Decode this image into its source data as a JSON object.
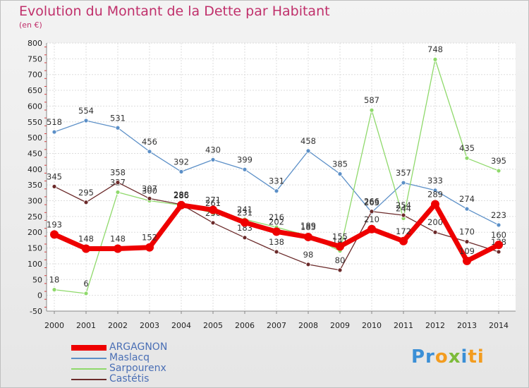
{
  "header": {
    "title": "Evolution du Montant de la Dette par Habitant",
    "subtitle": "(en €)"
  },
  "colors": {
    "title": "#c0306b",
    "argagnon": "#ee0000",
    "maslacq": "#5b8fc7",
    "sarpourenx": "#8fd96b",
    "castetis": "#6b2a2a"
  },
  "logo": {
    "parts": [
      "Pr",
      "o",
      "x",
      "i",
      "ti"
    ]
  },
  "chart_data": {
    "type": "line",
    "title": "Evolution du Montant de la Dette par Habitant",
    "subtitle": "(en €)",
    "x": [
      "2000",
      "2001",
      "2002",
      "2003",
      "2004",
      "2005",
      "2006",
      "2007",
      "2008",
      "2009",
      "2010",
      "2011",
      "2012",
      "2013",
      "2014"
    ],
    "ylim": [
      -50,
      800
    ],
    "yticks": [
      -50,
      0,
      50,
      100,
      150,
      200,
      250,
      300,
      350,
      400,
      450,
      500,
      550,
      600,
      650,
      700,
      750,
      800
    ],
    "grid": true,
    "legend": "bottom-left",
    "series": [
      {
        "name": "Maslacq",
        "color": "#5b8fc7",
        "values": [
          518,
          554,
          531,
          456,
          392,
          430,
          399,
          331,
          458,
          385,
          263,
          357,
          333,
          274,
          223
        ]
      },
      {
        "name": "Sarpourenx",
        "color": "#8fd96b",
        "values": [
          18,
          6,
          327,
          300,
          286,
          261,
          241,
          216,
          189,
          141,
          587,
          244,
          748,
          435,
          395
        ]
      },
      {
        "name": "Castétis",
        "color": "#6b2a2a",
        "values": [
          345,
          295,
          358,
          307,
          288,
          230,
          183,
          138,
          98,
          80,
          266,
          254,
          200,
          170,
          138
        ]
      },
      {
        "name": "ARGAGNON",
        "color": "#ee0000",
        "values": [
          193,
          148,
          148,
          152,
          286,
          271,
          231,
          202,
          185,
          155,
          210,
          172,
          289,
          109,
          160
        ]
      }
    ]
  }
}
